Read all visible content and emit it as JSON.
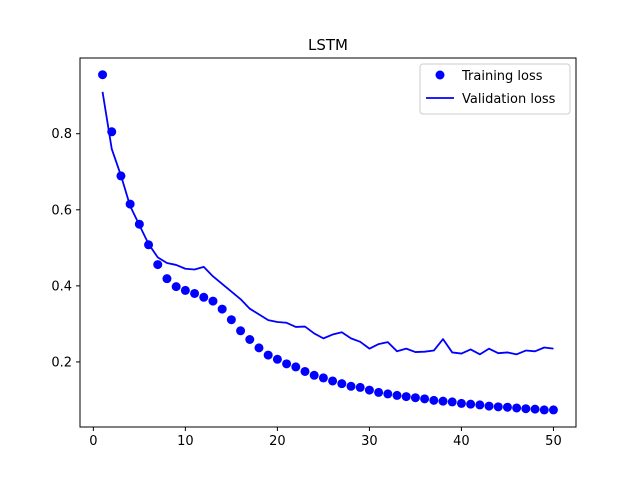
{
  "chart_data": {
    "type": "line",
    "title": "LSTM",
    "xlabel": "",
    "ylabel": "",
    "xlim": [
      -1.45,
      52.45
    ],
    "ylim": [
      0.029,
      0.999
    ],
    "xticks": [
      0,
      10,
      20,
      30,
      40,
      50
    ],
    "yticks": [
      0.2,
      0.4,
      0.6,
      0.8
    ],
    "grid": false,
    "legend_position": "top-right",
    "color": "#0000ff",
    "x": [
      1,
      2,
      3,
      4,
      5,
      6,
      7,
      8,
      9,
      10,
      11,
      12,
      13,
      14,
      15,
      16,
      17,
      18,
      19,
      20,
      21,
      22,
      23,
      24,
      25,
      26,
      27,
      28,
      29,
      30,
      31,
      32,
      33,
      34,
      35,
      36,
      37,
      38,
      39,
      40,
      41,
      42,
      43,
      44,
      45,
      46,
      47,
      48,
      49,
      50
    ],
    "series": [
      {
        "name": "Training loss",
        "style": "markers",
        "values": [
          0.955,
          0.805,
          0.689,
          0.615,
          0.562,
          0.508,
          0.456,
          0.419,
          0.398,
          0.388,
          0.38,
          0.37,
          0.36,
          0.339,
          0.311,
          0.282,
          0.259,
          0.237,
          0.218,
          0.207,
          0.195,
          0.187,
          0.175,
          0.165,
          0.158,
          0.15,
          0.143,
          0.136,
          0.133,
          0.126,
          0.12,
          0.116,
          0.112,
          0.109,
          0.106,
          0.103,
          0.099,
          0.097,
          0.095,
          0.091,
          0.089,
          0.087,
          0.084,
          0.082,
          0.081,
          0.079,
          0.077,
          0.076,
          0.074,
          0.074
        ]
      },
      {
        "name": "Validation loss",
        "style": "line",
        "values": [
          0.91,
          0.76,
          0.69,
          0.61,
          0.56,
          0.51,
          0.475,
          0.46,
          0.455,
          0.445,
          0.443,
          0.45,
          0.425,
          0.405,
          0.385,
          0.365,
          0.34,
          0.325,
          0.31,
          0.305,
          0.303,
          0.292,
          0.293,
          0.275,
          0.262,
          0.272,
          0.278,
          0.262,
          0.253,
          0.235,
          0.247,
          0.252,
          0.228,
          0.235,
          0.226,
          0.227,
          0.23,
          0.26,
          0.225,
          0.222,
          0.233,
          0.22,
          0.235,
          0.223,
          0.225,
          0.22,
          0.23,
          0.228,
          0.238,
          0.235
        ]
      }
    ]
  }
}
